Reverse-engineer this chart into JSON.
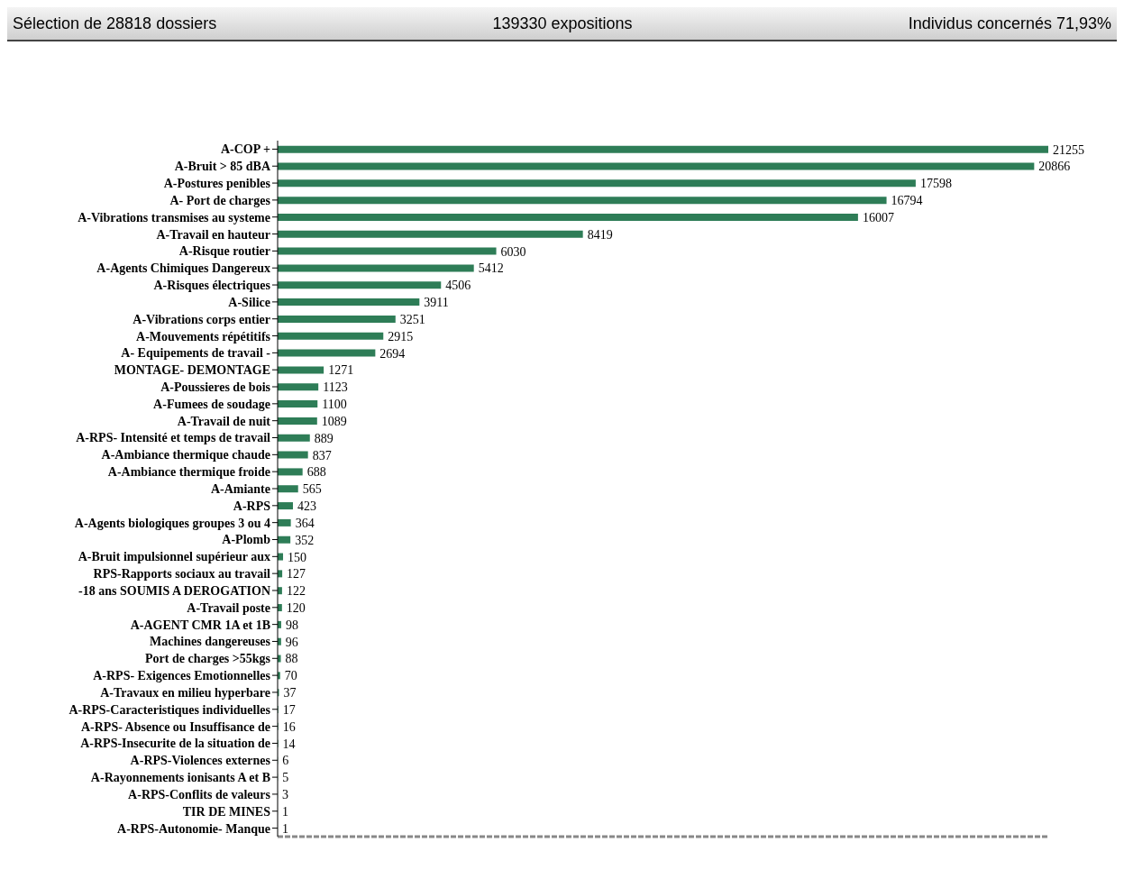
{
  "chart_data": {
    "type": "bar",
    "orientation": "horizontal",
    "title": "Sélection de 28818 dossiers",
    "annotations": [
      "139330 expositions",
      "Individus concernés 71,93%"
    ],
    "categories": [
      "A-COP +",
      "A-Bruit > 85 dBA",
      "A-Postures penibles",
      "A- Port de charges",
      "A-Vibrations transmises au systeme",
      "A-Travail en hauteur",
      "A-Risque routier",
      "A-Agents Chimiques Dangereux",
      "A-Risques électriques",
      "A-Silice",
      "A-Vibrations corps entier",
      "A-Mouvements répétitifs",
      "A- Equipements de travail -",
      "MONTAGE- DEMONTAGE",
      "A-Poussieres de bois",
      "A-Fumees de soudage",
      "A-Travail de nuit",
      "A-RPS- Intensité et temps de travail",
      "A-Ambiance thermique chaude",
      "A-Ambiance thermique froide",
      "A-Amiante",
      "A-RPS",
      "A-Agents biologiques groupes 3 ou 4",
      "A-Plomb",
      "A-Bruit impulsionnel supérieur aux",
      "RPS-Rapports sociaux au travail",
      "-18 ans SOUMIS A DEROGATION",
      "A-Travail poste",
      "A-AGENT CMR 1A et 1B",
      "Machines dangereuses",
      "Port de charges >55kgs",
      "A-RPS- Exigences Emotionnelles",
      "A-Travaux en milieu hyperbare",
      "A-RPS-Caracteristiques individuelles",
      "A-RPS- Absence ou Insuffisance de",
      "A-RPS-Insecurite de la situation de",
      "A-RPS-Violences externes",
      "A-Rayonnements ionisants A et B",
      "A-RPS-Conflits de valeurs",
      "TIR DE MINES",
      "A-RPS-Autonomie- Manque"
    ],
    "values": [
      21255,
      20866,
      17598,
      16794,
      16007,
      8419,
      6030,
      5412,
      4506,
      3911,
      3251,
      2915,
      2694,
      1271,
      1123,
      1100,
      1089,
      889,
      837,
      688,
      565,
      423,
      364,
      352,
      150,
      127,
      122,
      120,
      98,
      96,
      88,
      70,
      37,
      17,
      16,
      14,
      6,
      5,
      3,
      1,
      1
    ],
    "color": "#2e7d57",
    "data_labels": true
  }
}
